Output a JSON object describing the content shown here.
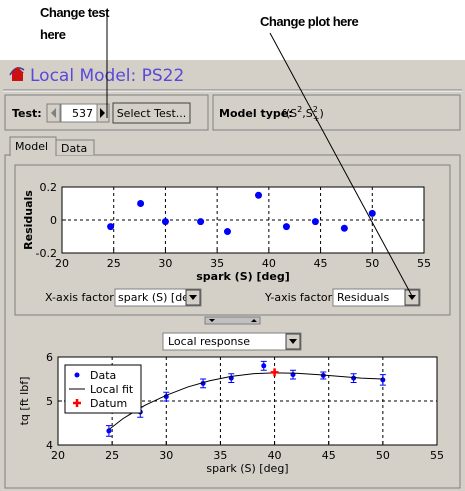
{
  "annotations": {
    "test": [
      "Change test",
      "here"
    ],
    "plot": "Change plot here"
  },
  "window": {
    "title": "Local Model: PS22"
  },
  "test_panel": {
    "label": "Test:",
    "test_number": "537",
    "button": "Select Test..."
  },
  "model_type": {
    "label": "Model type:",
    "formula_parts": [
      "f(S",
      "2",
      ",S",
      "2",
      "+",
      ")"
    ]
  },
  "tabs": [
    "Model",
    "Data"
  ],
  "controls": {
    "x_factor_label": "X-axis factor:",
    "x_factor_value": "spark (S) [deg",
    "y_factor_label": "Y-axis factor:",
    "y_factor_value": "Residuals",
    "view_select": "Local response"
  },
  "chart_data": [
    {
      "type": "scatter",
      "xlabel": "spark (S) [deg]",
      "ylabel": "Residuals",
      "x": [
        24.7,
        27.6,
        30,
        33.4,
        36,
        39,
        41.7,
        44.5,
        47.3,
        50
      ],
      "values": [
        -0.04,
        0.1,
        -0.01,
        -0.01,
        -0.07,
        0.15,
        -0.04,
        -0.01,
        -0.05,
        0.04
      ],
      "color": "#0000ff",
      "xlim": [
        20,
        55
      ],
      "xticks": [
        20,
        25,
        30,
        35,
        40,
        45,
        50,
        55
      ],
      "ylim": [
        -0.2,
        0.2
      ],
      "yticks": [
        -0.2,
        0,
        0.2
      ],
      "grid": true
    },
    {
      "type": "errorbar",
      "xlabel": "spark (S) [deg]",
      "ylabel": "tq [ft lbf]",
      "series": [
        {
          "name": "Data",
          "color": "#0000ff",
          "style": "dot",
          "x": [
            24.7,
            27.6,
            30,
            33.4,
            36,
            39,
            41.7,
            44.5,
            47.3,
            50
          ],
          "values": [
            4.32,
            4.75,
            5.1,
            5.4,
            5.52,
            5.8,
            5.6,
            5.58,
            5.52,
            5.48
          ],
          "errors": [
            0.12,
            0.12,
            0.1,
            0.1,
            0.1,
            0.1,
            0.1,
            0.08,
            0.1,
            0.12
          ]
        },
        {
          "name": "Local fit",
          "color": "#000000",
          "style": "line",
          "x": [
            24.7,
            26,
            28,
            30,
            32,
            34,
            36,
            38,
            40,
            42,
            44,
            46,
            48,
            50
          ],
          "values": [
            4.35,
            4.6,
            4.9,
            5.13,
            5.32,
            5.46,
            5.56,
            5.62,
            5.64,
            5.63,
            5.6,
            5.56,
            5.52,
            5.5
          ]
        },
        {
          "name": "Datum",
          "color": "#ff0000",
          "style": "plus",
          "x": [
            40
          ],
          "values": [
            5.65
          ]
        }
      ],
      "xlim": [
        20,
        55
      ],
      "xticks": [
        20,
        25,
        30,
        35,
        40,
        45,
        50,
        55
      ],
      "ylim": [
        4,
        6
      ],
      "yticks": [
        4,
        5,
        6
      ],
      "grid": true,
      "legend": "upper left"
    }
  ]
}
